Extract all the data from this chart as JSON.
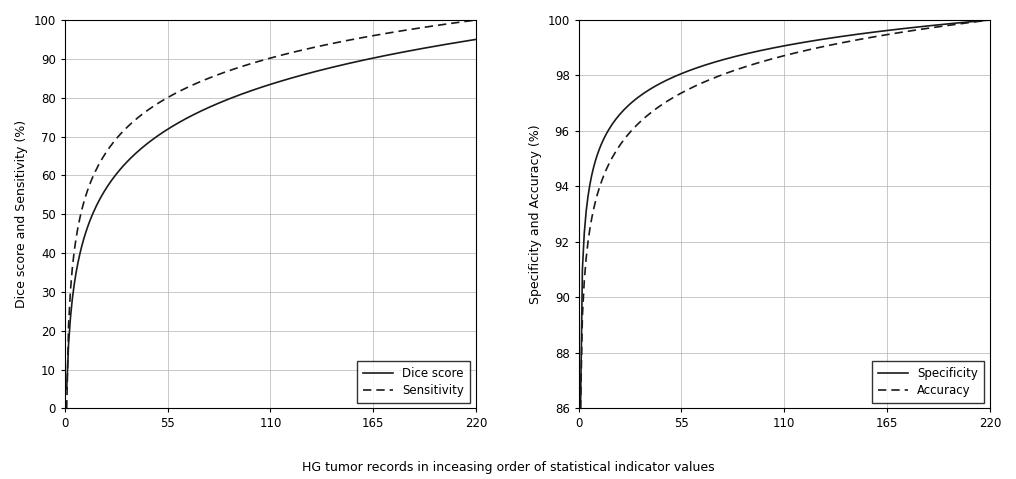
{
  "n_points": 220,
  "left_ylabel": "Dice score and Sensitivity (%)",
  "right_ylabel": "Specificity and Accuracy (%)",
  "xlabel": "HG tumor records in inceasing order of statistical indicator values",
  "left_ylim": [
    0,
    100
  ],
  "right_ylim": [
    86,
    100
  ],
  "xticks": [
    0,
    55,
    110,
    165,
    220
  ],
  "left_yticks": [
    0,
    10,
    20,
    30,
    40,
    50,
    60,
    70,
    80,
    90,
    100
  ],
  "right_yticks": [
    86,
    88,
    90,
    92,
    94,
    96,
    98,
    100
  ],
  "line_color": "#1a1a1a",
  "legend1": [
    "Dice score",
    "Sensitivity"
  ],
  "legend2": [
    "Specificity",
    "Accuracy"
  ],
  "bg_color": "#ffffff",
  "grid_color": "#b0b0b0"
}
